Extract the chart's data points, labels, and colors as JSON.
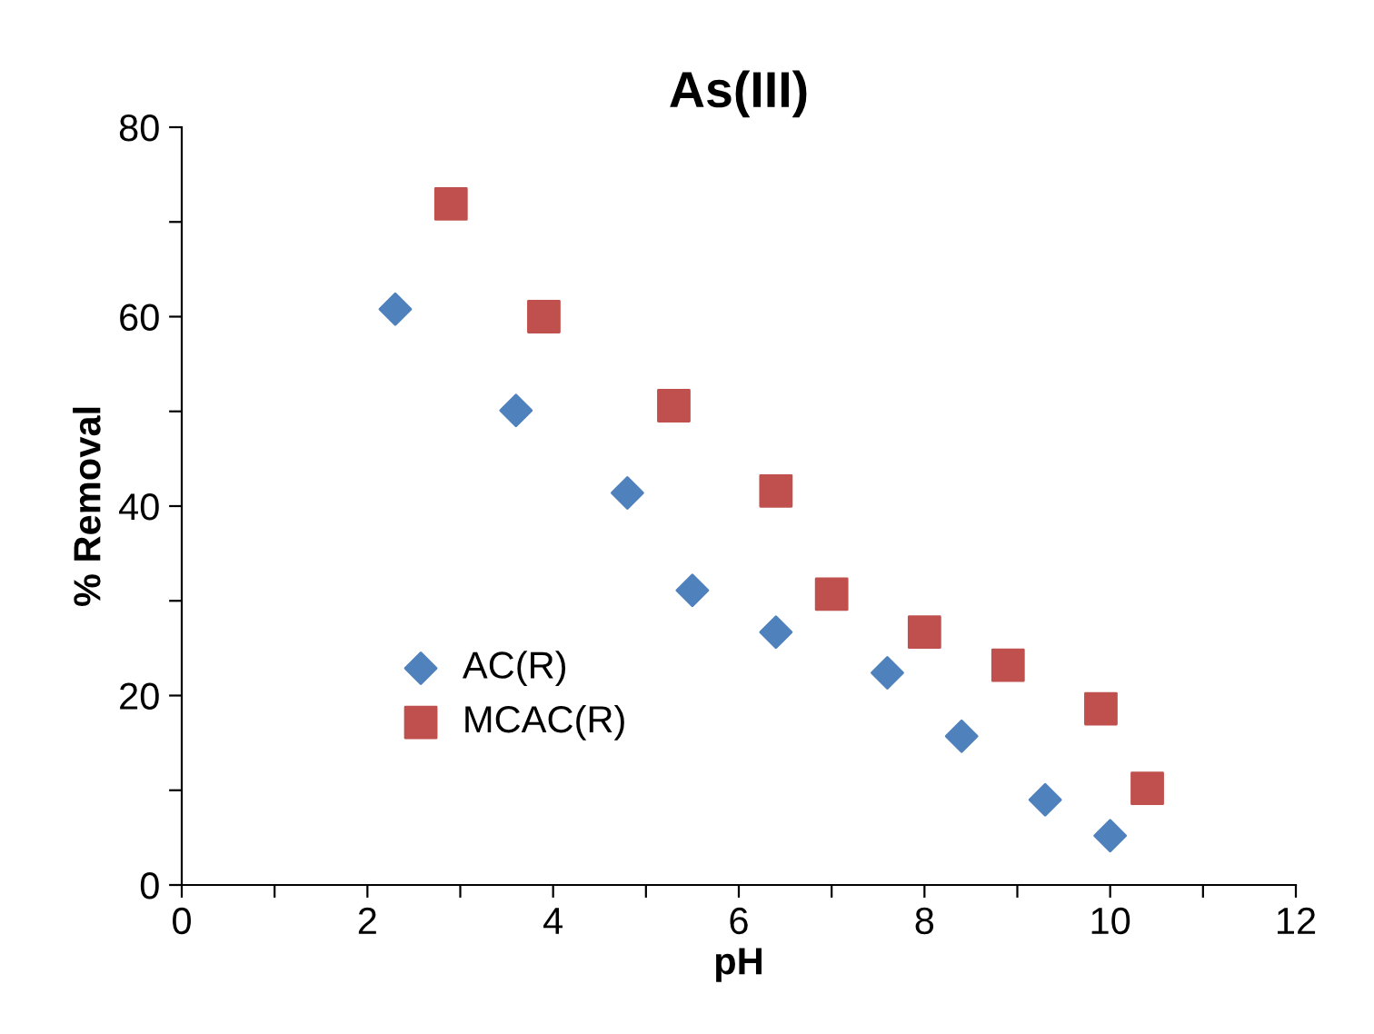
{
  "chart_data": {
    "type": "scatter",
    "title": "As(III)",
    "xlabel": "pH",
    "ylabel": "% Removal",
    "xlim": [
      0,
      12
    ],
    "ylim": [
      0,
      80
    ],
    "xticks": [
      0,
      {
        "value": 1,
        "label": null
      },
      2,
      {
        "value": 3,
        "label": null
      },
      4,
      {
        "value": 5,
        "label": null
      },
      6,
      {
        "value": 7,
        "label": null
      },
      8,
      {
        "value": 9,
        "label": null
      },
      10,
      {
        "value": 11,
        "label": null
      },
      12
    ],
    "yticks": [
      0,
      {
        "value": 10,
        "label": null
      },
      20,
      {
        "value": 30,
        "label": null
      },
      40,
      {
        "value": 50,
        "label": null
      },
      60,
      {
        "value": 70,
        "label": null
      },
      80
    ],
    "grid": false,
    "legend": "left",
    "series": [
      {
        "name": "AC(R)",
        "color": "#4f81bd",
        "marker": "diamond",
        "x": [
          2.3,
          3.6,
          4.8,
          5.5,
          6.4,
          7.6,
          8.4,
          9.3,
          10.0
        ],
        "values": [
          60.8,
          50.1,
          41.4,
          31.1,
          26.7,
          22.4,
          15.7,
          9.0,
          5.2
        ]
      },
      {
        "name": "MCAC(R)",
        "color": "#c0504d",
        "marker": "square",
        "x": [
          2.9,
          3.9,
          5.3,
          6.4,
          7.0,
          8.0,
          8.9,
          9.9,
          10.4
        ],
        "values": [
          71.9,
          60.0,
          50.6,
          41.6,
          30.7,
          26.7,
          23.2,
          18.6,
          10.2
        ]
      }
    ]
  }
}
